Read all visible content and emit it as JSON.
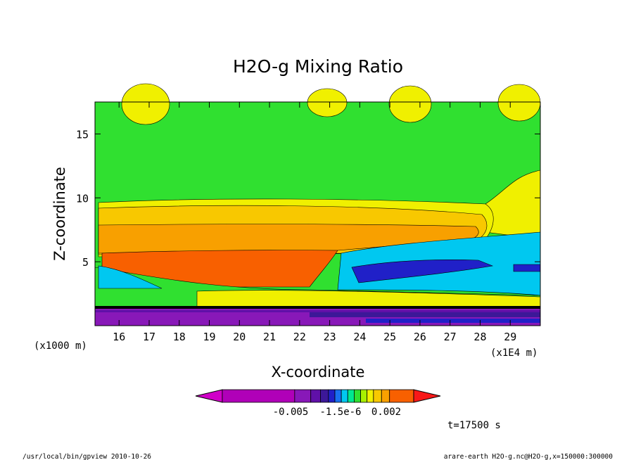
{
  "chart_data": {
    "type": "heatmap",
    "title": "H2O-g Mixing Ratio",
    "xlabel": "X-coordinate",
    "ylabel": "Z-coordinate",
    "x_unit_note": "(x1E4 m)",
    "y_unit_note": "(x1000 m)",
    "xlim": [
      15.2,
      30.0
    ],
    "ylim": [
      0,
      17.5
    ],
    "x_ticks": [
      "16",
      "17",
      "18",
      "19",
      "20",
      "21",
      "22",
      "23",
      "24",
      "25",
      "26",
      "27",
      "28",
      "29"
    ],
    "y_ticks": [
      "5",
      "10",
      "15"
    ],
    "colorbar": {
      "colors": [
        "#d000c8",
        "#b000b8",
        "#8818b8",
        "#6010a8",
        "#3c1898",
        "#2020c8",
        "#1870f0",
        "#00c8f0",
        "#00e890",
        "#30e030",
        "#a8f000",
        "#f0f000",
        "#f8c800",
        "#f8a000",
        "#f86000",
        "#f81818"
      ],
      "labels": [
        "-0.005",
        "-1.5e-6",
        "0.002"
      ]
    },
    "time_label": "t=17500 s",
    "footer_left": "/usr/local/bin/gpview  2010-10-26",
    "footer_right": "arare-earth_H2O-g.nc@H2O-g,x=150000:300000"
  }
}
